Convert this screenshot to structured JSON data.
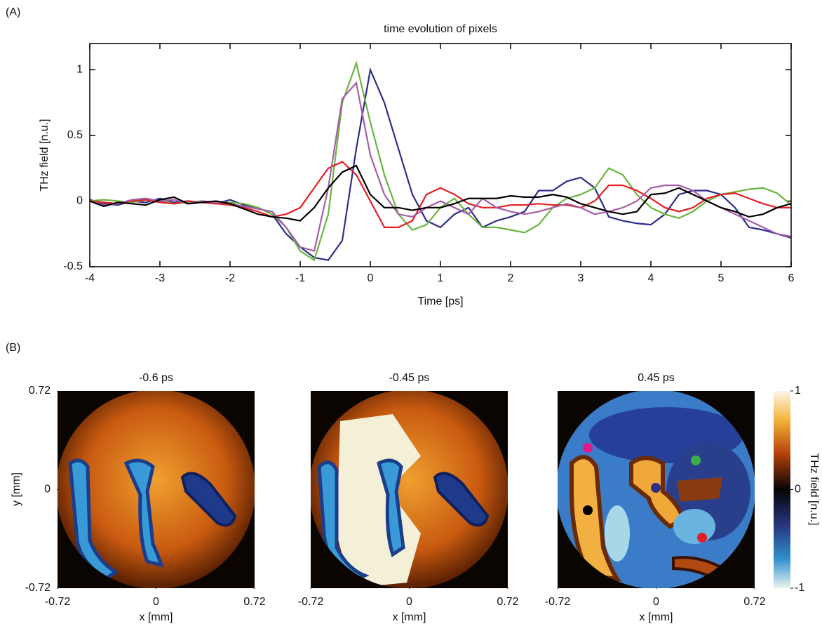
{
  "chart_data": [
    {
      "type": "line",
      "panel_label": "(A)",
      "title": "time evolution of pixels",
      "xlabel": "Time [ps]",
      "ylabel": "THz field [n.u.]",
      "xlim": [
        -4,
        6
      ],
      "ylim": [
        -0.5,
        1.2
      ],
      "xticks": [
        -4,
        -3,
        -2,
        -1,
        0,
        1,
        2,
        3,
        4,
        5,
        6
      ],
      "yticks": [
        -0.5,
        0,
        0.5,
        1
      ],
      "x": [
        -4,
        -3.8,
        -3.6,
        -3.4,
        -3.2,
        -3,
        -2.8,
        -2.6,
        -2.4,
        -2.2,
        -2,
        -1.8,
        -1.6,
        -1.4,
        -1.2,
        -1,
        -0.8,
        -0.6,
        -0.4,
        -0.2,
        0,
        0.2,
        0.4,
        0.6,
        0.8,
        1,
        1.2,
        1.4,
        1.6,
        1.8,
        2,
        2.2,
        2.4,
        2.6,
        2.8,
        3,
        3.2,
        3.4,
        3.6,
        3.8,
        4,
        4.2,
        4.4,
        4.6,
        4.8,
        5,
        5.2,
        5.4,
        5.6,
        5.8,
        6
      ],
      "series": [
        {
          "color": "#2e2d8a",
          "values": [
            0.01,
            -0.02,
            -0.03,
            0.0,
            -0.01,
            0.02,
            -0.01,
            0.0,
            -0.01,
            -0.02,
            0.01,
            -0.03,
            -0.05,
            -0.1,
            -0.25,
            -0.35,
            -0.43,
            -0.45,
            -0.3,
            0.4,
            1.0,
            0.75,
            0.4,
            0.05,
            -0.15,
            -0.2,
            -0.1,
            -0.05,
            -0.2,
            -0.15,
            -0.12,
            -0.08,
            0.08,
            0.08,
            0.15,
            0.18,
            0.1,
            -0.12,
            -0.15,
            -0.17,
            -0.18,
            -0.1,
            0.05,
            0.08,
            0.08,
            0.05,
            -0.05,
            -0.2,
            -0.22,
            -0.25,
            -0.28
          ]
        },
        {
          "color": "#6ab43e",
          "values": [
            0.0,
            0.01,
            0.0,
            -0.01,
            0.01,
            0.0,
            -0.02,
            -0.01,
            0.0,
            -0.01,
            -0.01,
            -0.02,
            -0.05,
            -0.1,
            -0.2,
            -0.38,
            -0.45,
            -0.1,
            0.75,
            1.05,
            0.6,
            0.2,
            -0.1,
            -0.22,
            -0.18,
            -0.05,
            0.02,
            -0.1,
            -0.2,
            -0.2,
            -0.22,
            -0.24,
            -0.18,
            -0.05,
            0.02,
            0.05,
            0.1,
            0.25,
            0.2,
            0.05,
            -0.05,
            -0.1,
            -0.13,
            -0.08,
            0.0,
            0.05,
            0.07,
            0.09,
            0.1,
            0.06,
            -0.03
          ]
        },
        {
          "color": "#e31e24",
          "values": [
            0.0,
            -0.01,
            -0.02,
            0.0,
            0.01,
            -0.01,
            -0.02,
            0.0,
            -0.01,
            -0.02,
            -0.03,
            -0.05,
            -0.08,
            -0.12,
            -0.1,
            -0.05,
            0.1,
            0.25,
            0.3,
            0.2,
            0.0,
            -0.2,
            -0.2,
            -0.15,
            0.05,
            0.1,
            0.05,
            -0.02,
            -0.05,
            -0.05,
            -0.03,
            -0.03,
            -0.02,
            -0.03,
            -0.03,
            -0.05,
            0.0,
            0.12,
            0.12,
            0.08,
            0.02,
            -0.05,
            -0.08,
            -0.05,
            0.02,
            0.05,
            0.06,
            0.02,
            -0.02,
            -0.05,
            -0.05
          ]
        },
        {
          "color": "#a45ea8",
          "values": [
            0.0,
            -0.03,
            -0.02,
            0.01,
            0.02,
            0.0,
            0.01,
            -0.02,
            0.0,
            -0.01,
            -0.02,
            -0.04,
            -0.06,
            -0.08,
            -0.2,
            -0.35,
            -0.38,
            0.1,
            0.78,
            0.9,
            0.35,
            0.05,
            -0.1,
            -0.12,
            -0.05,
            0.0,
            -0.05,
            -0.1,
            0.02,
            -0.05,
            -0.08,
            -0.1,
            -0.08,
            -0.05,
            -0.02,
            -0.05,
            -0.1,
            -0.08,
            -0.05,
            0.0,
            0.1,
            0.12,
            0.12,
            0.08,
            0.0,
            -0.05,
            -0.1,
            -0.15,
            -0.2,
            -0.25,
            -0.27
          ]
        },
        {
          "color": "#000000",
          "values": [
            0.0,
            -0.04,
            -0.01,
            -0.02,
            -0.03,
            0.01,
            0.03,
            -0.02,
            -0.01,
            0.0,
            -0.02,
            -0.06,
            -0.1,
            -0.12,
            -0.13,
            -0.15,
            -0.05,
            0.1,
            0.22,
            0.27,
            0.05,
            -0.05,
            -0.05,
            -0.07,
            -0.05,
            -0.05,
            -0.02,
            0.02,
            0.02,
            0.02,
            0.04,
            0.03,
            0.03,
            0.05,
            0.03,
            -0.02,
            -0.05,
            -0.08,
            -0.1,
            -0.08,
            0.05,
            0.06,
            0.1,
            0.05,
            0.0,
            -0.05,
            -0.08,
            -0.12,
            -0.1,
            -0.05,
            -0.02
          ]
        }
      ]
    },
    {
      "type": "heatmap",
      "panel_label": "(B)",
      "titles": [
        "-0.6 ps",
        "-0.45 ps",
        "0.45 ps"
      ],
      "xlabel": "x [mm]",
      "ylabel": "y [mm]",
      "xlim": [
        -0.72,
        0.72
      ],
      "ylim": [
        -0.72,
        0.72
      ],
      "xticks": [
        -0.72,
        0,
        0.72
      ],
      "yticks": [
        -0.72,
        0,
        0.72
      ],
      "colorbar_label": "THz field [n.u.]",
      "clim": [
        -1,
        1
      ],
      "cticks": [
        -1,
        0,
        1
      ]
    }
  ]
}
